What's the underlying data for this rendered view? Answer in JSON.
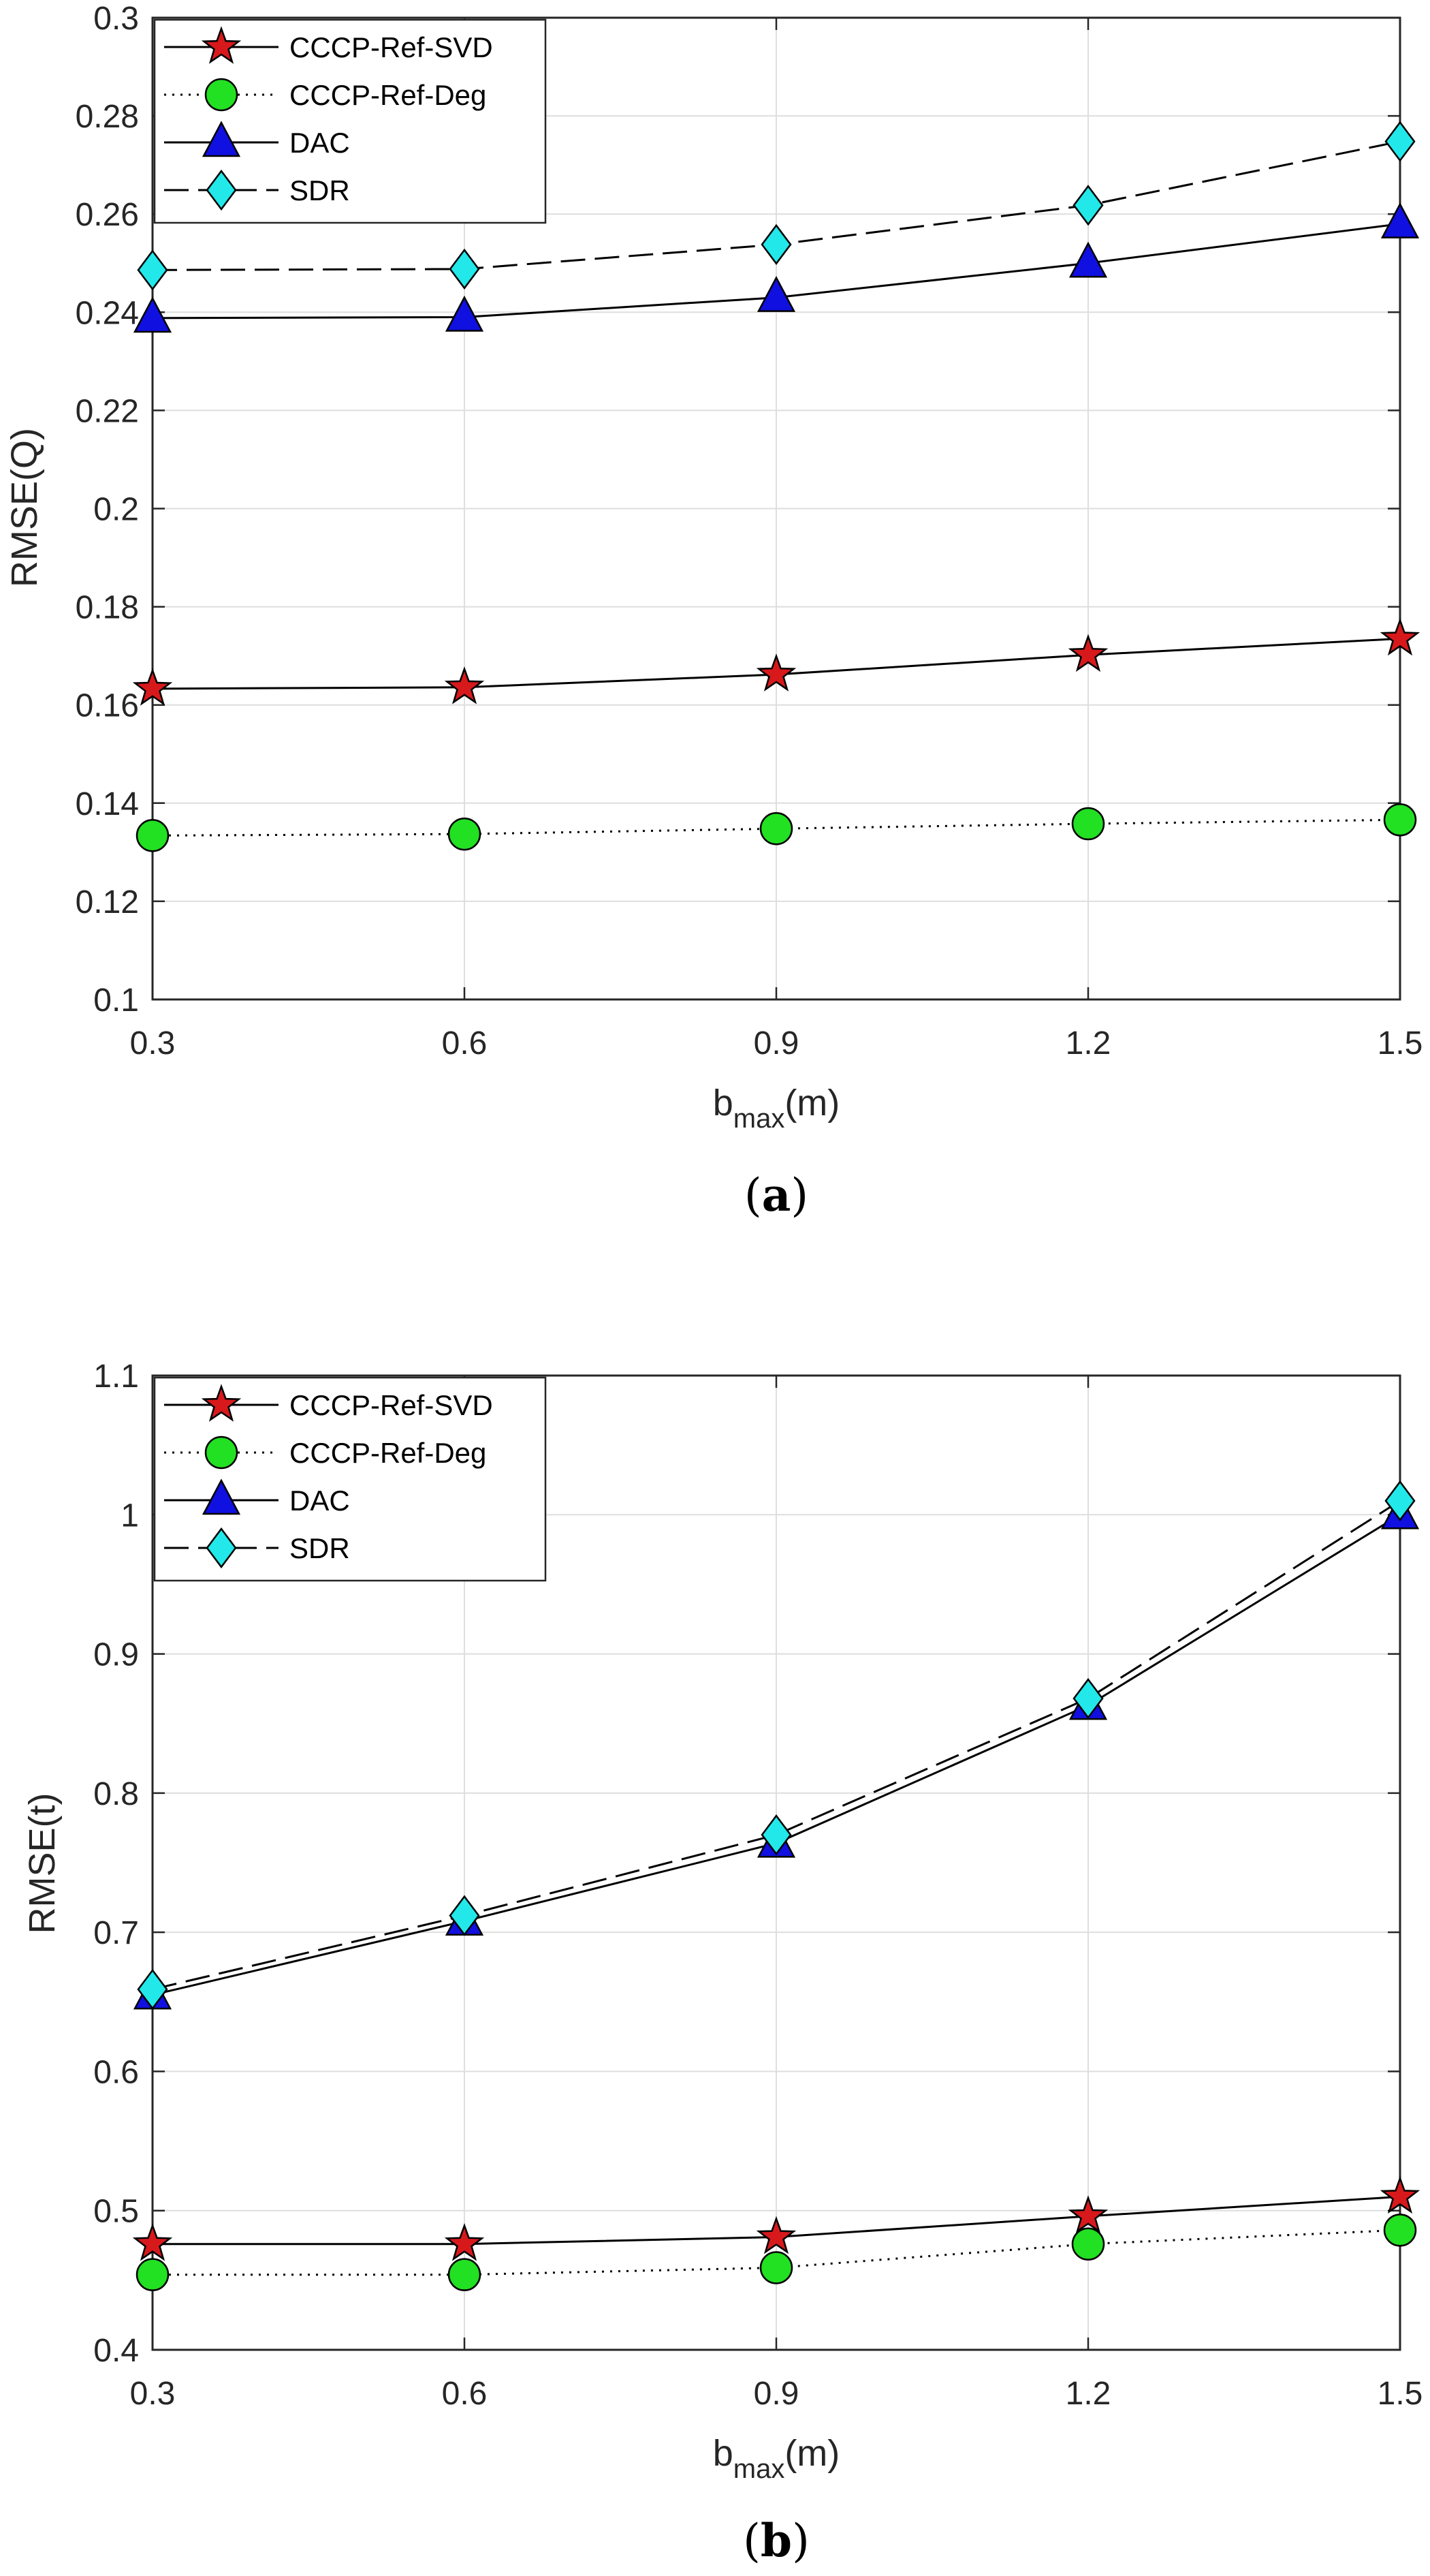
{
  "chart_data": [
    {
      "type": "line",
      "caption": {
        "open": "(",
        "letter": "a",
        "close": ")"
      },
      "xlabel": {
        "base": "b",
        "sub": "max",
        "unit": "(m)"
      },
      "ylabel": "RMSE(Q)",
      "x": [
        0.3,
        0.6,
        0.9,
        1.2,
        1.5
      ],
      "xticks": [
        "0.3",
        "0.6",
        "0.9",
        "1.2",
        "1.5"
      ],
      "ylim": [
        0.1,
        0.3
      ],
      "yticks": [
        "0.1",
        "0.12",
        "0.14",
        "0.16",
        "0.18",
        "0.2",
        "0.22",
        "0.24",
        "0.26",
        "0.28",
        "0.3"
      ],
      "grid": true,
      "legend_position": "top-left",
      "series": [
        {
          "name": "CCCP-Ref-SVD",
          "marker": "star",
          "line": "solid",
          "color": "#d7191c",
          "values": [
            0.1633,
            0.1636,
            0.1662,
            0.1702,
            0.1735
          ]
        },
        {
          "name": "CCCP-Ref-Deg",
          "marker": "circle",
          "line": "dotted",
          "color": "#22e022",
          "values": [
            0.1334,
            0.1337,
            0.1348,
            0.1358,
            0.1366
          ]
        },
        {
          "name": "DAC",
          "marker": "triangle",
          "line": "solid",
          "color": "#1010e0",
          "values": [
            0.2388,
            0.239,
            0.243,
            0.25,
            0.258
          ]
        },
        {
          "name": "SDR",
          "marker": "diamond",
          "line": "dashed",
          "color": "#22e8ea",
          "values": [
            0.2486,
            0.2488,
            0.2538,
            0.2618,
            0.2748
          ]
        }
      ]
    },
    {
      "type": "line",
      "caption": {
        "open": "(",
        "letter": "b",
        "close": ")"
      },
      "xlabel": {
        "base": "b",
        "sub": "max",
        "unit": "(m)"
      },
      "ylabel": "RMSE(t)",
      "x": [
        0.3,
        0.6,
        0.9,
        1.2,
        1.5
      ],
      "xticks": [
        "0.3",
        "0.6",
        "0.9",
        "1.2",
        "1.5"
      ],
      "ylim": [
        0.4,
        1.1
      ],
      "yticks": [
        "0.4",
        "0.5",
        "0.6",
        "0.7",
        "0.8",
        "0.9",
        "1",
        "1.1"
      ],
      "grid": true,
      "legend_position": "top-left",
      "series": [
        {
          "name": "CCCP-Ref-SVD",
          "marker": "star",
          "line": "solid",
          "color": "#d7191c",
          "values": [
            0.476,
            0.476,
            0.481,
            0.496,
            0.51
          ]
        },
        {
          "name": "CCCP-Ref-Deg",
          "marker": "circle",
          "line": "dotted",
          "color": "#22e022",
          "values": [
            0.454,
            0.454,
            0.459,
            0.476,
            0.486
          ]
        },
        {
          "name": "DAC",
          "marker": "triangle",
          "line": "solid",
          "color": "#1010e0",
          "values": [
            0.655,
            0.708,
            0.764,
            0.863,
            1.0
          ]
        },
        {
          "name": "SDR",
          "marker": "diamond",
          "line": "dashed",
          "color": "#22e8ea",
          "values": [
            0.659,
            0.712,
            0.77,
            0.868,
            1.01
          ]
        }
      ]
    }
  ]
}
